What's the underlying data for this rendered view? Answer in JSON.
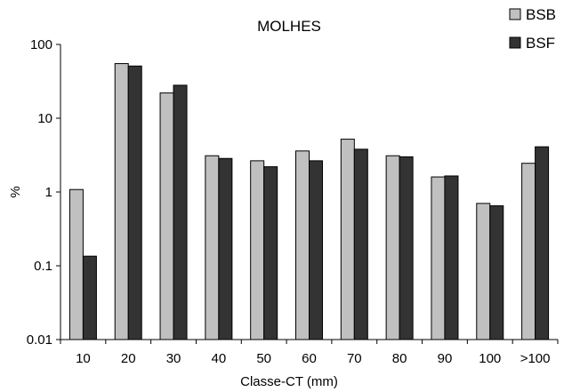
{
  "chart_data": {
    "type": "bar",
    "title": "MOLHES",
    "xlabel": "Classe-CT (mm)",
    "ylabel": "%",
    "yscale": "log",
    "ylim": [
      0.01,
      100
    ],
    "yticks": [
      "0.01",
      "0.1",
      "1",
      "10",
      "100"
    ],
    "grid": false,
    "legend_position": "top-right",
    "categories": [
      "10",
      "20",
      "30",
      "40",
      "50",
      "60",
      "70",
      "80",
      "90",
      "100",
      ">100"
    ],
    "series": [
      {
        "name": "BSB",
        "color": "#c0c0c0",
        "values": [
          1.08,
          55,
          22,
          3.1,
          2.65,
          3.6,
          5.2,
          3.1,
          1.6,
          0.7,
          2.45
        ]
      },
      {
        "name": "BSF",
        "color": "#333333",
        "values": [
          0.135,
          51,
          28,
          2.85,
          2.2,
          2.65,
          3.8,
          3.0,
          1.65,
          0.65,
          4.1
        ]
      }
    ]
  }
}
